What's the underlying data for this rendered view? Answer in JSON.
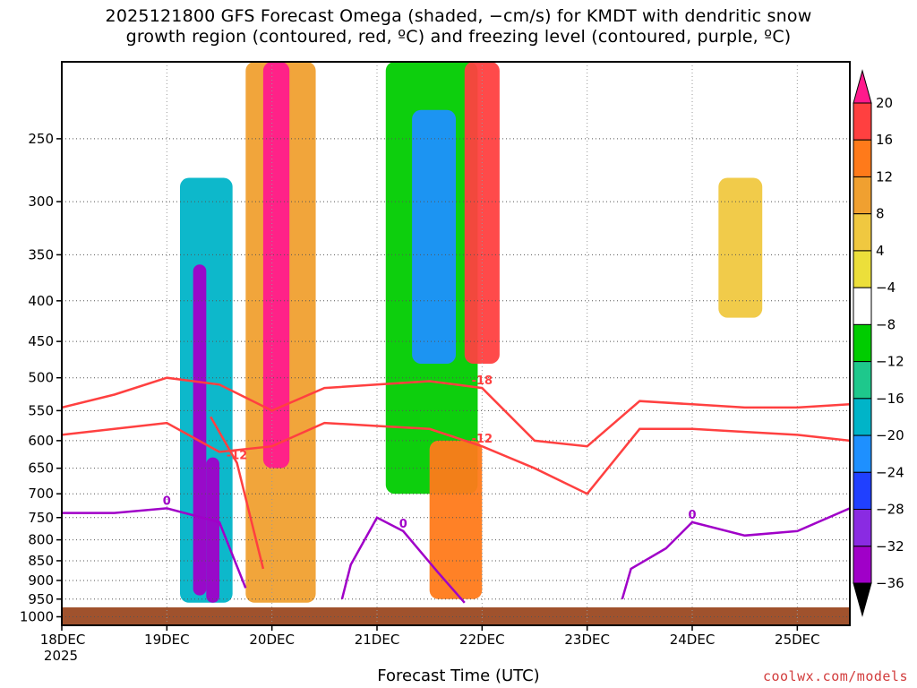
{
  "chart_data": {
    "type": "heatmap",
    "title_line1": "2025121800 GFS Forecast Omega (shaded, −cm/s) for KMDT with dendritic snow",
    "title_line2": "growth region (contoured, red, ºC) and freezing level (contoured, purple, ºC)",
    "xlabel": "Forecast Time (UTC)",
    "credit": "coolwx.com/models",
    "x_ticks": [
      {
        "label": "18DEC",
        "sub": "2025",
        "t": 0
      },
      {
        "label": "19DEC",
        "sub": "",
        "t": 24
      },
      {
        "label": "20DEC",
        "sub": "",
        "t": 48
      },
      {
        "label": "21DEC",
        "sub": "",
        "t": 72
      },
      {
        "label": "22DEC",
        "sub": "",
        "t": 96
      },
      {
        "label": "23DEC",
        "sub": "",
        "t": 120
      },
      {
        "label": "24DEC",
        "sub": "",
        "t": 144
      },
      {
        "label": "25DEC",
        "sub": "",
        "t": 168
      }
    ],
    "x_range_hours": [
      0,
      180
    ],
    "y_ticks": [
      "250",
      "300",
      "350",
      "400",
      "450",
      "500",
      "550",
      "600",
      "650",
      "700",
      "750",
      "800",
      "850",
      "900",
      "950",
      "1000"
    ],
    "y_values_hpa": [
      250,
      300,
      350,
      400,
      450,
      500,
      550,
      600,
      650,
      700,
      750,
      800,
      850,
      900,
      950,
      1000
    ],
    "y_range_hpa": [
      200,
      1025
    ],
    "colorbar": {
      "labels": [
        "20",
        "16",
        "12",
        "8",
        "4",
        "−4",
        "−8",
        "−12",
        "−16",
        "−20",
        "−24",
        "−28",
        "−32",
        "−36"
      ],
      "values": [
        20,
        16,
        12,
        8,
        4,
        -4,
        -8,
        -12,
        -16,
        -20,
        -24,
        -28,
        -32,
        -36
      ],
      "colors": [
        "#ff1a8c",
        "#ff4040",
        "#ff7a1a",
        "#f0a030",
        "#f0c840",
        "#ecdf3a",
        "#ffffff",
        "#00cc00",
        "#1ec88c",
        "#00b4c8",
        "#1e90ff",
        "#2040ff",
        "#8a2be2",
        "#a000c8",
        "#aaaaaa",
        "#000000"
      ]
    },
    "omega_features": [
      {
        "label": "",
        "t0": 30,
        "t1": 33,
        "p0": 360,
        "p1": 940,
        "value": -36
      },
      {
        "label": "",
        "t0": 33,
        "t1": 36,
        "p0": 630,
        "p1": 960,
        "value": -36
      },
      {
        "label": "",
        "t0": 27,
        "t1": 39,
        "p0": 280,
        "p1": 960,
        "value": -20
      },
      {
        "label": "",
        "t0": 46,
        "t1": 52,
        "p0": 200,
        "p1": 650,
        "value": 20
      },
      {
        "label": "",
        "t0": 42,
        "t1": 58,
        "p0": 200,
        "p1": 960,
        "value": 8
      },
      {
        "label": "",
        "t0": 80,
        "t1": 90,
        "p0": 230,
        "p1": 480,
        "value": -24
      },
      {
        "label": "",
        "t0": 74,
        "t1": 95,
        "p0": 200,
        "p1": 700,
        "value": -12
      },
      {
        "label": "",
        "t0": 92,
        "t1": 100,
        "p0": 200,
        "p1": 480,
        "value": 16
      },
      {
        "label": "",
        "t0": 84,
        "t1": 96,
        "p0": 600,
        "p1": 950,
        "value": 12
      },
      {
        "label": "",
        "t0": 60,
        "t1": 72,
        "p0": 200,
        "p1": 900,
        "value": -8
      },
      {
        "label": "",
        "t0": 126,
        "t1": 132,
        "p0": 350,
        "p1": 850,
        "value": -8
      },
      {
        "label": "",
        "t0": 150,
        "t1": 160,
        "p0": 280,
        "p1": 420,
        "value": 4
      }
    ],
    "contours": [
      {
        "label": "-18",
        "color": "#ff4040",
        "points": [
          [
            0,
            545
          ],
          [
            12,
            525
          ],
          [
            24,
            500
          ],
          [
            36,
            510
          ],
          [
            48,
            550
          ],
          [
            60,
            515
          ],
          [
            72,
            510
          ],
          [
            84,
            505
          ],
          [
            96,
            515
          ],
          [
            108,
            600
          ],
          [
            120,
            610
          ],
          [
            132,
            535
          ],
          [
            144,
            540
          ],
          [
            156,
            545
          ],
          [
            168,
            545
          ],
          [
            180,
            540
          ]
        ]
      },
      {
        "label": "-12",
        "color": "#ff4040",
        "points": [
          [
            0,
            590
          ],
          [
            12,
            580
          ],
          [
            24,
            570
          ],
          [
            36,
            620
          ],
          [
            48,
            610
          ],
          [
            60,
            570
          ],
          [
            72,
            575
          ],
          [
            84,
            580
          ],
          [
            96,
            610
          ],
          [
            108,
            650
          ],
          [
            120,
            700
          ],
          [
            132,
            580
          ],
          [
            144,
            580
          ],
          [
            156,
            585
          ],
          [
            168,
            590
          ],
          [
            180,
            600
          ]
        ]
      },
      {
        "label": "-12",
        "color": "#ff4040",
        "points": [
          [
            34,
            560
          ],
          [
            40,
            640
          ],
          [
            46,
            870
          ]
        ]
      },
      {
        "label": "0",
        "color": "#a000c8",
        "points": [
          [
            0,
            740
          ],
          [
            12,
            740
          ],
          [
            24,
            730
          ],
          [
            36,
            760
          ],
          [
            42,
            920
          ]
        ]
      },
      {
        "label": "0",
        "color": "#a000c8",
        "points": [
          [
            64,
            950
          ],
          [
            66,
            860
          ],
          [
            72,
            750
          ],
          [
            78,
            780
          ],
          [
            86,
            880
          ],
          [
            92,
            960
          ]
        ]
      },
      {
        "label": "0",
        "color": "#a000c8",
        "points": [
          [
            128,
            950
          ],
          [
            130,
            870
          ],
          [
            138,
            820
          ],
          [
            144,
            760
          ],
          [
            156,
            790
          ],
          [
            168,
            780
          ],
          [
            180,
            730
          ]
        ]
      }
    ]
  }
}
